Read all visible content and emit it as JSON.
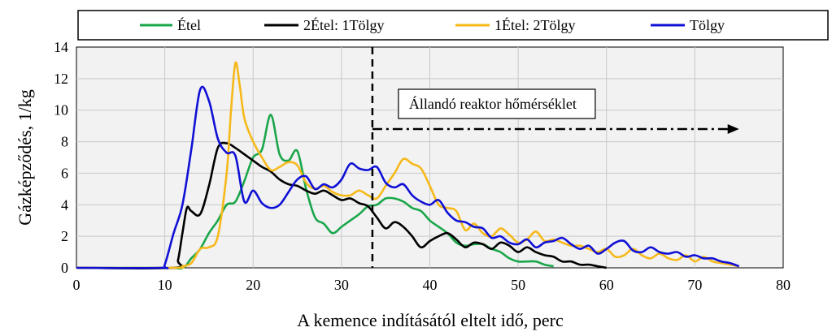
{
  "chart_data": {
    "type": "line",
    "title": "",
    "xlabel": "A kemence indításától eltelt idő, perc",
    "ylabel": "Gázképződés, 1/kg",
    "xlim": [
      0,
      80
    ],
    "ylim": [
      0,
      14
    ],
    "xticks": [
      0,
      10,
      20,
      30,
      40,
      50,
      60,
      70,
      80
    ],
    "yticks": [
      0,
      2,
      4,
      6,
      8,
      10,
      12,
      14
    ],
    "grid": true,
    "legend_placement": "top",
    "annotation": {
      "text": "Állandó reaktor hőmérséklet",
      "vline_x": 33.5,
      "arrow_from_x": 33.5,
      "arrow_to_x": 75,
      "arrow_y": 8.8
    },
    "series": [
      {
        "name": "Étel",
        "color": "#1aa64a",
        "x": [
          0,
          10,
          12,
          13,
          14,
          15,
          16,
          17,
          18,
          19,
          20,
          21,
          22,
          23,
          24,
          25,
          26,
          27,
          28,
          29,
          30,
          31,
          32,
          33,
          34,
          35,
          36,
          37,
          38,
          39,
          40,
          41,
          42,
          43,
          44,
          45,
          46,
          47,
          48,
          49,
          50,
          51,
          52,
          53,
          54
        ],
        "y": [
          0,
          0,
          0,
          0.6,
          1.2,
          2.2,
          3.0,
          4.0,
          4.2,
          5.5,
          7.0,
          7.5,
          9.7,
          7.2,
          6.8,
          7.4,
          5.0,
          3.2,
          2.8,
          2.2,
          2.6,
          3.0,
          3.4,
          3.9,
          4.0,
          4.4,
          4.4,
          4.2,
          3.8,
          3.6,
          3.0,
          2.6,
          2.2,
          1.6,
          1.4,
          1.5,
          1.5,
          1.2,
          1.0,
          0.6,
          0.4,
          0.4,
          0.4,
          0.2,
          0.1
        ]
      },
      {
        "name": "2Étel: 1Tölgy",
        "color": "#000000",
        "x": [
          0,
          11,
          11.5,
          12,
          12.5,
          13,
          14,
          15,
          16,
          17,
          18,
          19,
          20,
          21,
          22,
          23,
          24,
          25,
          26,
          27,
          28,
          29,
          30,
          31,
          32,
          33,
          34,
          35,
          36,
          37,
          38,
          39,
          40,
          41,
          42,
          43,
          44,
          45,
          46,
          47,
          48,
          49,
          50,
          51,
          52,
          53,
          54,
          55,
          56,
          57,
          58,
          59,
          60
        ],
        "y": [
          0,
          0,
          0.5,
          2.2,
          3.8,
          3.6,
          3.4,
          5.2,
          7.6,
          7.9,
          7.6,
          7.2,
          6.8,
          6.4,
          6.1,
          5.6,
          5.3,
          5.2,
          4.9,
          4.7,
          4.9,
          4.6,
          4.3,
          4.4,
          4.1,
          3.9,
          3.2,
          2.5,
          2.9,
          2.6,
          2.0,
          1.3,
          1.7,
          2.0,
          2.2,
          1.8,
          1.3,
          1.6,
          1.5,
          1.2,
          1.6,
          1.4,
          1.0,
          1.3,
          1.0,
          0.8,
          0.7,
          0.4,
          0.4,
          0.2,
          0.2,
          0.1,
          0.0
        ]
      },
      {
        "name": "1Étel: 2Tölgy",
        "color": "#f6b91a",
        "x": [
          0,
          11,
          12,
          13,
          14,
          15,
          16,
          17,
          17.5,
          18,
          18.5,
          19,
          20,
          21,
          22,
          23,
          24,
          25,
          26,
          27,
          28,
          29,
          30,
          31,
          32,
          33,
          34,
          35,
          36,
          37,
          38,
          39,
          40,
          41,
          42,
          43,
          44,
          45,
          46,
          47,
          48,
          49,
          50,
          51,
          52,
          53,
          54,
          55,
          56,
          57,
          58,
          59,
          60,
          61,
          62,
          63,
          64,
          65,
          66,
          67,
          68,
          69,
          70,
          71,
          72,
          73,
          74,
          75
        ],
        "y": [
          0,
          0,
          0.1,
          0.3,
          1.2,
          1.3,
          2.0,
          6.0,
          10.0,
          13.0,
          11.5,
          9.5,
          8.0,
          7.0,
          6.2,
          6.4,
          6.7,
          6.5,
          5.4,
          5.0,
          5.2,
          4.8,
          4.6,
          4.6,
          4.9,
          4.6,
          4.4,
          5.2,
          6.0,
          6.9,
          6.6,
          6.3,
          5.2,
          4.0,
          3.8,
          3.6,
          2.4,
          2.8,
          2.2,
          2.0,
          2.5,
          2.1,
          1.6,
          1.8,
          2.3,
          1.7,
          1.8,
          1.6,
          1.4,
          1.4,
          1.2,
          1.0,
          1.2,
          0.7,
          0.8,
          1.2,
          0.8,
          0.6,
          0.9,
          0.6,
          0.5,
          0.8,
          0.4,
          0.7,
          0.4,
          0.3,
          0.2,
          0.1
        ]
      },
      {
        "name": "Tölgy",
        "color": "#1010d6",
        "x": [
          0,
          9.5,
          10,
          11,
          12,
          13,
          14,
          15,
          16,
          17,
          18,
          19,
          20,
          21,
          22,
          23,
          24,
          25,
          26,
          27,
          28,
          29,
          30,
          31,
          32,
          33,
          34,
          35,
          36,
          37,
          38,
          39,
          40,
          41,
          42,
          43,
          44,
          45,
          46,
          47,
          48,
          49,
          50,
          51,
          52,
          53,
          54,
          55,
          56,
          57,
          58,
          59,
          60,
          61,
          62,
          63,
          64,
          65,
          66,
          67,
          68,
          69,
          70,
          71,
          72,
          73,
          74,
          75
        ],
        "y": [
          0,
          0,
          0.2,
          2.2,
          4.0,
          7.5,
          11.3,
          10.6,
          8.2,
          7.3,
          7.1,
          4.2,
          4.9,
          4.1,
          3.8,
          4.0,
          4.8,
          5.6,
          5.8,
          5.0,
          5.3,
          5.1,
          5.6,
          6.6,
          6.3,
          6.2,
          6.4,
          5.4,
          5.1,
          5.3,
          4.6,
          4.2,
          4.0,
          4.3,
          3.5,
          3.0,
          2.9,
          2.6,
          2.5,
          1.9,
          2.0,
          1.6,
          1.5,
          1.8,
          1.3,
          1.6,
          1.7,
          1.9,
          1.5,
          1.2,
          1.4,
          0.9,
          1.2,
          1.6,
          1.7,
          1.1,
          1.0,
          1.3,
          1.0,
          0.9,
          1.0,
          0.7,
          0.8,
          0.6,
          0.6,
          0.4,
          0.3,
          0.1
        ]
      }
    ]
  }
}
